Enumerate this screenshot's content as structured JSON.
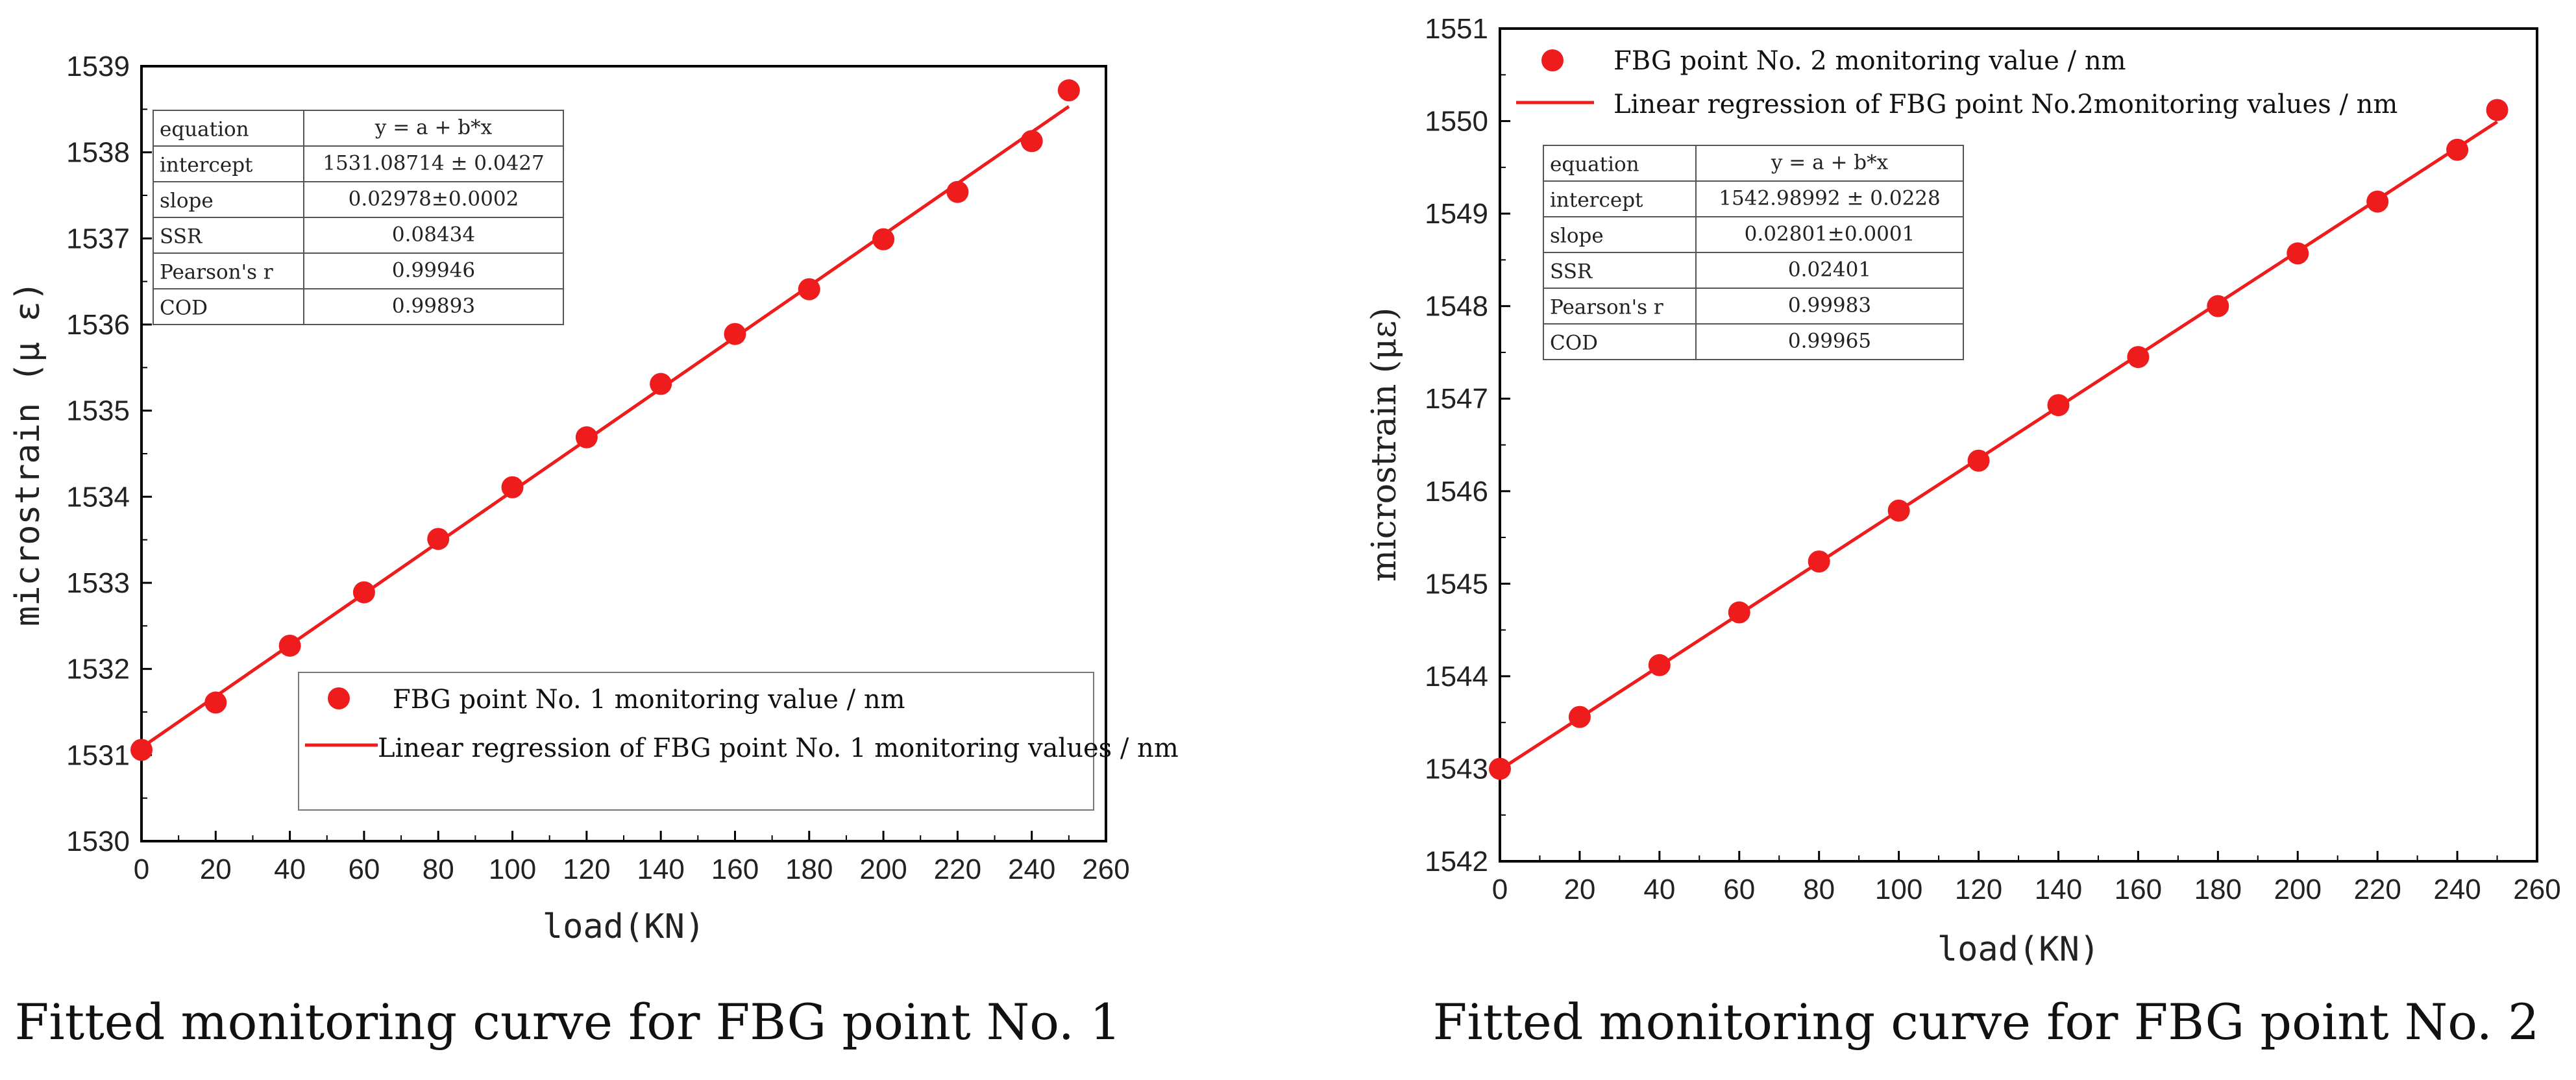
{
  "captions": [
    "Fitted monitoring curve for FBG point No. 1",
    "Fitted monitoring curve for FBG point No. 2"
  ],
  "colors": {
    "series": "#ee1c1c",
    "axis": "#000000",
    "table_border": "#555555"
  },
  "chart_data": [
    {
      "type": "scatter",
      "xlabel": "load(KN)",
      "ylabel": "microstrain (μ ε)",
      "xlim": [
        0,
        260
      ],
      "ylim": [
        1530,
        1539
      ],
      "xticks": [
        0,
        20,
        40,
        60,
        80,
        100,
        120,
        140,
        160,
        180,
        200,
        220,
        240,
        260
      ],
      "yticks": [
        1530,
        1531,
        1532,
        1533,
        1534,
        1535,
        1536,
        1537,
        1538,
        1539
      ],
      "grid": false,
      "legend_position": "bottom-right",
      "series": [
        {
          "name": "FBG point No. 1 monitoring value / nm",
          "x": [
            0,
            20,
            40,
            60,
            80,
            100,
            120,
            140,
            160,
            180,
            200,
            220,
            240,
            250
          ],
          "y": [
            1531.06,
            1531.61,
            1532.27,
            1532.89,
            1533.51,
            1534.11,
            1534.69,
            1535.31,
            1535.89,
            1536.41,
            1536.99,
            1537.54,
            1538.13,
            1538.72
          ]
        },
        {
          "name": "Linear regression of FBG point No. 1 monitoring values / nm",
          "kind": "fit",
          "intercept": 1531.08714,
          "slope": 0.02978,
          "x_range": [
            0,
            250
          ]
        }
      ],
      "stats_table": [
        [
          "equation",
          "y = a + b*x"
        ],
        [
          "intercept",
          "1531.08714 ± 0.0427"
        ],
        [
          "slope",
          "0.02978±0.0002"
        ],
        [
          "SSR",
          "0.08434"
        ],
        [
          "Pearson's r",
          "0.99946"
        ],
        [
          "COD",
          "0.99893"
        ]
      ]
    },
    {
      "type": "scatter",
      "xlabel": "load(KN)",
      "ylabel": "microstrain (με)",
      "xlim": [
        0,
        260
      ],
      "ylim": [
        1542,
        1551
      ],
      "xticks": [
        0,
        20,
        40,
        60,
        80,
        100,
        120,
        140,
        160,
        180,
        200,
        220,
        240,
        260
      ],
      "yticks": [
        1542,
        1543,
        1544,
        1545,
        1546,
        1547,
        1548,
        1549,
        1550,
        1551
      ],
      "grid": false,
      "legend_position": "top-left",
      "series": [
        {
          "name": "FBG point No. 2 monitoring value / nm",
          "x": [
            0,
            20,
            40,
            60,
            80,
            100,
            120,
            140,
            160,
            180,
            200,
            220,
            240,
            250
          ],
          "y": [
            1543.0,
            1543.56,
            1544.12,
            1544.69,
            1545.24,
            1545.79,
            1546.33,
            1546.93,
            1547.45,
            1548.0,
            1548.57,
            1549.13,
            1549.69,
            1550.12
          ]
        },
        {
          "name": "Linear regression of FBG point No.2monitoring values / nm",
          "kind": "fit",
          "intercept": 1542.98992,
          "slope": 0.02801,
          "x_range": [
            0,
            250
          ]
        }
      ],
      "stats_table": [
        [
          "equation",
          "y = a + b*x"
        ],
        [
          "intercept",
          "1542.98992 ± 0.0228"
        ],
        [
          "slope",
          "0.02801±0.0001"
        ],
        [
          "SSR",
          "0.02401"
        ],
        [
          "Pearson's r",
          "0.99983"
        ],
        [
          "COD",
          "0.99965"
        ]
      ]
    }
  ]
}
